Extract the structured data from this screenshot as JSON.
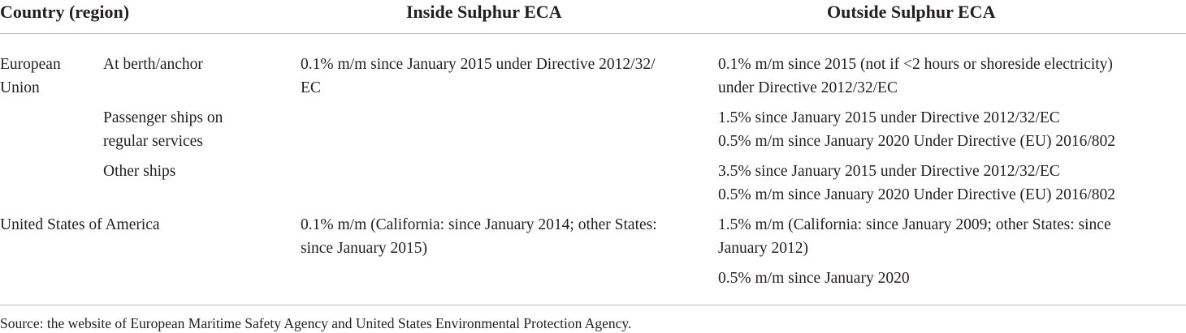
{
  "table": {
    "headers": {
      "country": "Country (region)",
      "inside": "Inside Sulphur ECA",
      "outside": "Outside Sulphur ECA"
    },
    "rows": {
      "eu": {
        "country_line1": "European",
        "country_line2": "Union",
        "berth": {
          "category": "At berth/anchor",
          "inside_line1": "0.1% m/m since January 2015 under Directive 2012/32/",
          "inside_line2": "EC",
          "outside_line1": "0.1% m/m since 2015 (not if <2 hours or shoreside electricity)",
          "outside_line2": "under Directive 2012/32/EC"
        },
        "passenger": {
          "category_line1": "Passenger ships on",
          "category_line2": "regular services",
          "outside_line1": "1.5% since January 2015 under Directive 2012/32/EC",
          "outside_line2": "0.5% m/m since January 2020 Under Directive (EU) 2016/802"
        },
        "other": {
          "category": "Other ships",
          "outside_line1": "3.5% since January 2015 under Directive 2012/32/EC",
          "outside_line2": "0.5% m/m since January 2020 Under Directive (EU) 2016/802"
        }
      },
      "usa": {
        "country": "United States of America",
        "inside_line1": "0.1% m/m (California: since January 2014; other States:",
        "inside_line2": "since January 2015)",
        "outside_line1": "1.5% m/m (California: since January 2009; other States: since",
        "outside_line2": "January 2012)",
        "outside_line3": "0.5% m/m since January 2020"
      }
    },
    "source_note": "Source: the website of European Maritime Safety Agency and United States Environmental Protection Agency."
  }
}
